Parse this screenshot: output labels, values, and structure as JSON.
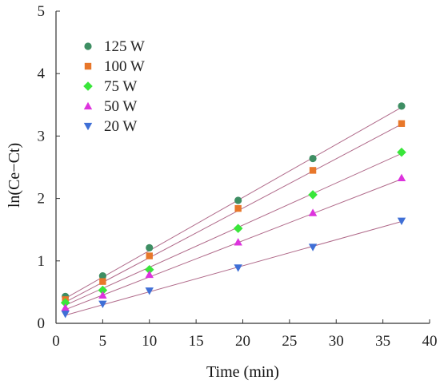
{
  "chart_data": {
    "type": "scatter",
    "xlabel": "Time (min)",
    "ylabel": "ln(Ce−Ct)",
    "xlim": [
      0,
      40
    ],
    "ylim": [
      0,
      5
    ],
    "x_ticks": [
      0,
      5,
      10,
      15,
      20,
      25,
      30,
      35,
      40
    ],
    "y_ticks": [
      0,
      1,
      2,
      3,
      4,
      5
    ],
    "grid": false,
    "legend_position": "top-left",
    "fit_line_color": "#b06a8a",
    "series": [
      {
        "name": "125 W",
        "marker": "circle",
        "color": "#3e8e63",
        "x": [
          1,
          5,
          10,
          19.5,
          27.5,
          37
        ],
        "y": [
          0.43,
          0.76,
          1.21,
          1.97,
          2.64,
          3.48
        ],
        "fit": [
          [
            1,
            0.4
          ],
          [
            37,
            3.46
          ]
        ]
      },
      {
        "name": "100 W",
        "marker": "square",
        "color": "#e8772a",
        "x": [
          1,
          5,
          10,
          19.5,
          27.5,
          37
        ],
        "y": [
          0.38,
          0.67,
          1.08,
          1.84,
          2.45,
          3.2
        ],
        "fit": [
          [
            1,
            0.34
          ],
          [
            37,
            3.19
          ]
        ]
      },
      {
        "name": "75 W",
        "marker": "diamond",
        "color": "#39e63a",
        "x": [
          1,
          5,
          10,
          19.5,
          27.5,
          37
        ],
        "y": [
          0.33,
          0.53,
          0.86,
          1.52,
          2.06,
          2.74
        ],
        "fit": [
          [
            1,
            0.29
          ],
          [
            37,
            2.72
          ]
        ]
      },
      {
        "name": "50 W",
        "marker": "triangle-up",
        "color": "#dd33dd",
        "x": [
          1,
          5,
          10,
          19.5,
          27.5,
          37
        ],
        "y": [
          0.25,
          0.45,
          0.78,
          1.3,
          1.77,
          2.33
        ],
        "fit": [
          [
            1,
            0.22
          ],
          [
            37,
            2.31
          ]
        ]
      },
      {
        "name": "20 W",
        "marker": "triangle-down",
        "color": "#3f6fd6",
        "x": [
          1,
          5,
          10,
          19.5,
          27.5,
          37
        ],
        "y": [
          0.15,
          0.31,
          0.52,
          0.89,
          1.22,
          1.64
        ],
        "fit": [
          [
            1,
            0.13
          ],
          [
            37,
            1.63
          ]
        ]
      }
    ]
  }
}
